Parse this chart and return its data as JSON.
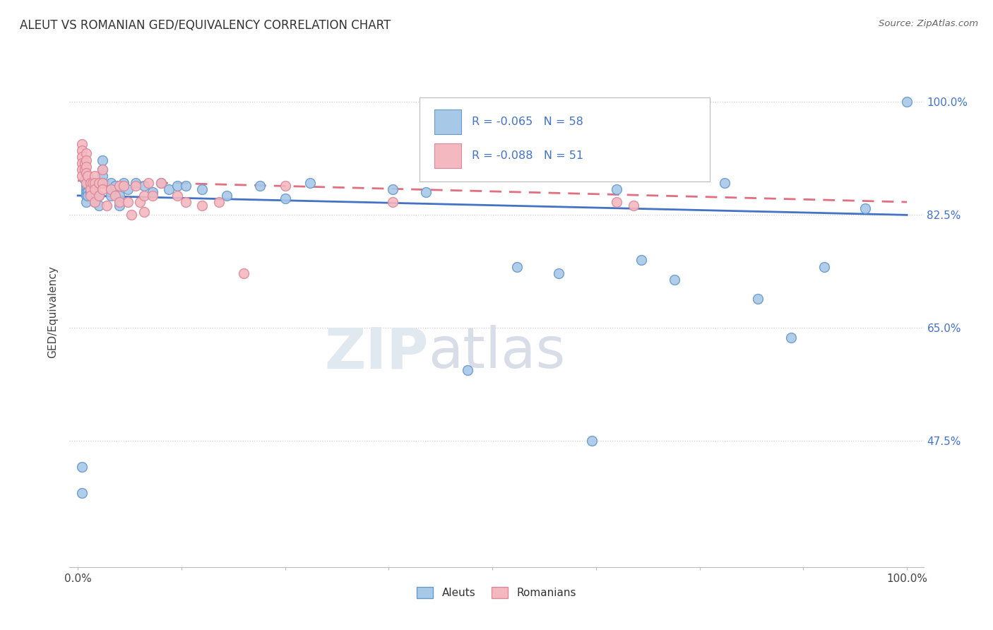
{
  "title": "ALEUT VS ROMANIAN GED/EQUIVALENCY CORRELATION CHART",
  "source": "Source: ZipAtlas.com",
  "ylabel": "GED/Equivalency",
  "ytick_labels": [
    "100.0%",
    "82.5%",
    "65.0%",
    "47.5%"
  ],
  "ytick_values": [
    1.0,
    0.825,
    0.65,
    0.475
  ],
  "legend_label1": "Aleuts",
  "legend_label2": "Romanians",
  "R_aleut": -0.065,
  "N_aleut": 58,
  "R_romanian": -0.088,
  "N_romanian": 51,
  "aleut_color": "#a8c8e8",
  "romanian_color": "#f4b8c0",
  "aleut_edge_color": "#6699cc",
  "romanian_edge_color": "#dd8899",
  "aleut_line_color": "#4472c4",
  "romanian_line_color": "#e07080",
  "background_color": "#ffffff",
  "aleut_x": [
    0.005,
    0.005,
    0.008,
    0.01,
    0.01,
    0.01,
    0.01,
    0.01,
    0.012,
    0.012,
    0.015,
    0.015,
    0.015,
    0.02,
    0.02,
    0.02,
    0.02,
    0.025,
    0.025,
    0.03,
    0.03,
    0.03,
    0.03,
    0.04,
    0.04,
    0.04,
    0.045,
    0.05,
    0.05,
    0.055,
    0.06,
    0.07,
    0.08,
    0.09,
    0.1,
    0.11,
    0.12,
    0.13,
    0.15,
    0.18,
    0.22,
    0.25,
    0.28,
    0.38,
    0.42,
    0.47,
    0.53,
    0.58,
    0.62,
    0.65,
    0.68,
    0.72,
    0.78,
    0.82,
    0.86,
    0.9,
    0.95,
    1.0
  ],
  "aleut_y": [
    0.435,
    0.395,
    0.88,
    0.87,
    0.865,
    0.86,
    0.855,
    0.845,
    0.86,
    0.855,
    0.875,
    0.87,
    0.86,
    0.875,
    0.865,
    0.86,
    0.845,
    0.855,
    0.84,
    0.91,
    0.895,
    0.885,
    0.875,
    0.875,
    0.865,
    0.855,
    0.87,
    0.855,
    0.84,
    0.875,
    0.865,
    0.875,
    0.87,
    0.86,
    0.875,
    0.865,
    0.87,
    0.87,
    0.865,
    0.855,
    0.87,
    0.85,
    0.875,
    0.865,
    0.86,
    0.585,
    0.745,
    0.735,
    0.475,
    0.865,
    0.755,
    0.725,
    0.875,
    0.695,
    0.635,
    0.745,
    0.835,
    1.0
  ],
  "romanian_x": [
    0.005,
    0.005,
    0.005,
    0.005,
    0.005,
    0.005,
    0.008,
    0.008,
    0.01,
    0.01,
    0.01,
    0.01,
    0.01,
    0.012,
    0.015,
    0.015,
    0.015,
    0.018,
    0.02,
    0.02,
    0.02,
    0.02,
    0.025,
    0.025,
    0.03,
    0.03,
    0.03,
    0.035,
    0.04,
    0.045,
    0.05,
    0.05,
    0.055,
    0.06,
    0.065,
    0.07,
    0.075,
    0.08,
    0.08,
    0.085,
    0.09,
    0.1,
    0.12,
    0.13,
    0.15,
    0.17,
    0.2,
    0.25,
    0.38,
    0.65,
    0.67
  ],
  "romanian_y": [
    0.935,
    0.925,
    0.915,
    0.905,
    0.895,
    0.885,
    0.905,
    0.895,
    0.92,
    0.91,
    0.9,
    0.89,
    0.875,
    0.885,
    0.875,
    0.865,
    0.855,
    0.875,
    0.885,
    0.875,
    0.865,
    0.845,
    0.875,
    0.855,
    0.895,
    0.875,
    0.865,
    0.84,
    0.865,
    0.855,
    0.87,
    0.845,
    0.87,
    0.845,
    0.825,
    0.87,
    0.845,
    0.855,
    0.83,
    0.875,
    0.855,
    0.875,
    0.855,
    0.845,
    0.84,
    0.845,
    0.735,
    0.87,
    0.845,
    0.845,
    0.84
  ]
}
